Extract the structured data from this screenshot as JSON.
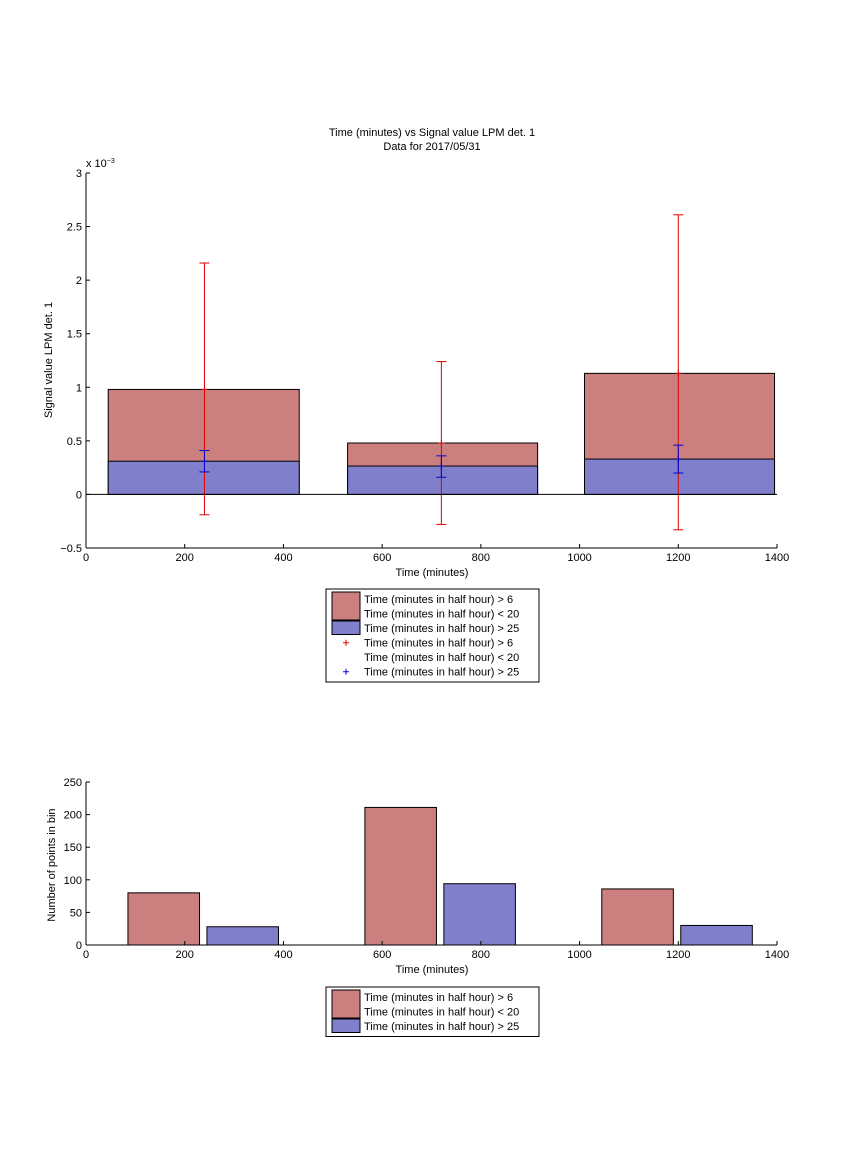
{
  "chart_data": [
    {
      "type": "bar",
      "title": "Time (minutes) vs Signal value LPM det. 1",
      "subtitle": "Data for 2017/05/31",
      "xlabel": "Time (minutes)",
      "ylabel": "Signal value LPM det. 1",
      "y_exponent_label": "x 10",
      "y_exponent_power": "−3",
      "xlim": [
        0,
        1400
      ],
      "ylim": [
        -0.5,
        3
      ],
      "x_ticks": [
        "0",
        "200",
        "400",
        "600",
        "800",
        "1000",
        "1200",
        "1400"
      ],
      "y_ticks": [
        "−0.5",
        "0",
        "0.5",
        "1",
        "1.5",
        "2",
        "2.5",
        "3"
      ],
      "grid": false,
      "legend_position": "below",
      "colors": {
        "red": "#cc7f7f",
        "blue": "#7f7fcc",
        "red_error": "#e00000",
        "blue_error": "#0000cc",
        "border": "#000000"
      },
      "series": [
        {
          "name_lines": [
            "Time (minutes in half hour) > 6",
            "Time (minutes in half hour) < 20"
          ],
          "kind": "bar",
          "color": "#cc7f7f",
          "x_left": [
            45,
            530,
            1010
          ],
          "x_right": [
            432,
            915,
            1395
          ],
          "values": [
            0.98,
            0.48,
            1.13
          ]
        },
        {
          "name_lines": [
            "Time (minutes in half hour) > 25"
          ],
          "kind": "bar",
          "color": "#7f7fcc",
          "x_left": [
            45,
            530,
            1010
          ],
          "x_right": [
            432,
            915,
            1395
          ],
          "values": [
            0.31,
            0.265,
            0.33
          ]
        },
        {
          "name_lines": [
            "Time (minutes in half hour) > 6",
            "Time (minutes in half hour) < 20"
          ],
          "kind": "errorbar",
          "marker": "+",
          "color": "#e00000",
          "x": [
            240,
            720,
            1200
          ],
          "y": [
            0.98,
            0.48,
            1.13
          ],
          "lower": [
            -0.19,
            -0.28,
            -0.33
          ],
          "upper": [
            2.16,
            1.24,
            2.61
          ]
        },
        {
          "name_lines": [
            "Time (minutes in half hour) > 25"
          ],
          "kind": "errorbar",
          "marker": "+",
          "color": "#0000cc",
          "x": [
            240,
            720,
            1200
          ],
          "y": [
            0.31,
            0.265,
            0.33
          ],
          "lower": [
            0.21,
            0.16,
            0.2
          ],
          "upper": [
            0.41,
            0.36,
            0.46
          ]
        }
      ]
    },
    {
      "type": "bar",
      "xlabel": "Time (minutes)",
      "ylabel": "Number of points in bin",
      "xlim": [
        0,
        1400
      ],
      "ylim": [
        0,
        250
      ],
      "x_ticks": [
        "0",
        "200",
        "400",
        "600",
        "800",
        "1000",
        "1200",
        "1400"
      ],
      "y_ticks": [
        "0",
        "50",
        "100",
        "150",
        "200",
        "250"
      ],
      "grid": false,
      "legend_position": "below",
      "series": [
        {
          "name_lines": [
            "Time (minutes in half hour) > 6",
            "Time (minutes in half hour) < 20"
          ],
          "color": "#cc7f7f",
          "x_left": [
            85,
            565,
            1045
          ],
          "x_right": [
            230,
            710,
            1190
          ],
          "values": [
            80,
            211,
            86
          ]
        },
        {
          "name_lines": [
            "Time (minutes in half hour) > 25"
          ],
          "color": "#7f7fcc",
          "x_left": [
            245,
            725,
            1205
          ],
          "x_right": [
            390,
            870,
            1350
          ],
          "values": [
            28,
            94,
            30
          ]
        }
      ]
    }
  ]
}
